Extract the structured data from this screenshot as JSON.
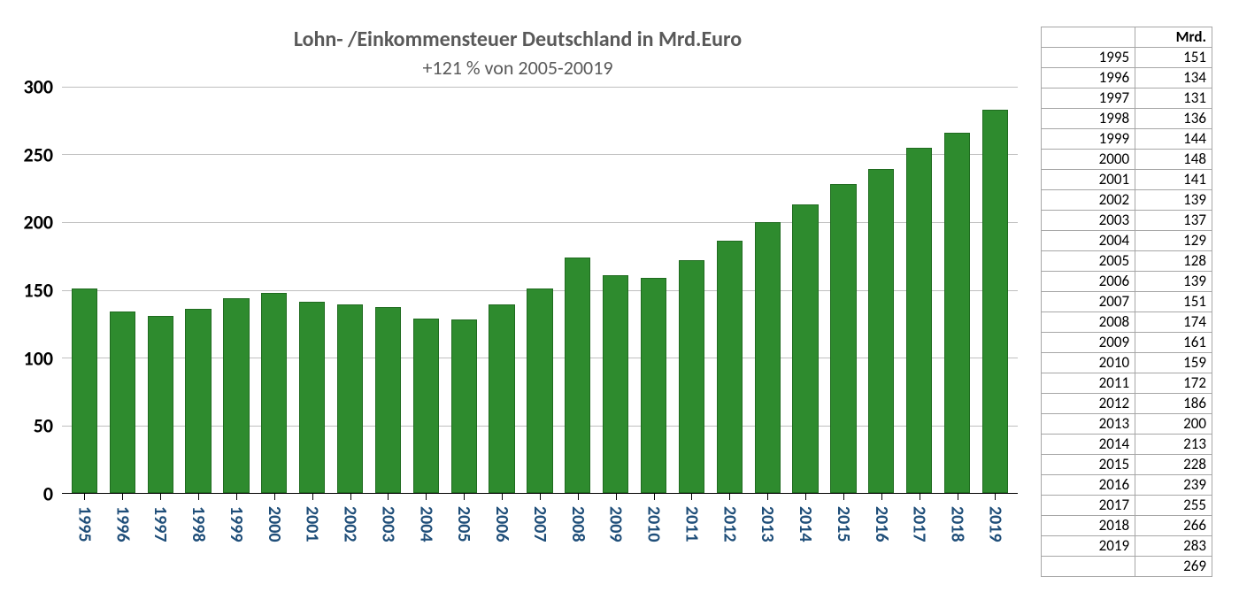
{
  "chart": {
    "type": "bar",
    "title": "Lohn- /Einkommensteuer Deutschland in Mrd.Euro",
    "subtitle": "+121 %  von 2005-20019",
    "title_fontsize": 24,
    "subtitle_fontsize": 22,
    "title_color": "#595959",
    "bar_color": "#2e8b2e",
    "bar_border_color": "#1f6b1f",
    "bar_width_ratio": 0.68,
    "grid_color": "#bfbfbf",
    "axis_color": "#000000",
    "background_color": "#ffffff",
    "xlabel_color": "#1f4e79",
    "xlabel_fontsize": 20,
    "ylabel_fontsize": 22,
    "ylabel_color": "#000000",
    "ylim": [
      0,
      300
    ],
    "ytick_step": 50,
    "yticks": [
      0,
      50,
      100,
      150,
      200,
      250,
      300
    ],
    "categories": [
      "1995",
      "1996",
      "1997",
      "1998",
      "1999",
      "2000",
      "2001",
      "2002",
      "2003",
      "2004",
      "2005",
      "2006",
      "2007",
      "2008",
      "2009",
      "2010",
      "2011",
      "2012",
      "2013",
      "2014",
      "2015",
      "2016",
      "2017",
      "2018",
      "2019"
    ],
    "values": [
      151,
      134,
      131,
      136,
      144,
      148,
      141,
      139,
      137,
      129,
      128,
      139,
      151,
      174,
      161,
      159,
      172,
      186,
      200,
      213,
      228,
      239,
      255,
      266,
      283
    ]
  },
  "table": {
    "header_blank": "",
    "header_value": "Mrd.",
    "rows": [
      {
        "year": "1995",
        "value": "151"
      },
      {
        "year": "1996",
        "value": "134"
      },
      {
        "year": "1997",
        "value": "131"
      },
      {
        "year": "1998",
        "value": "136"
      },
      {
        "year": "1999",
        "value": "144"
      },
      {
        "year": "2000",
        "value": "148"
      },
      {
        "year": "2001",
        "value": "141"
      },
      {
        "year": "2002",
        "value": "139"
      },
      {
        "year": "2003",
        "value": "137"
      },
      {
        "year": "2004",
        "value": "129"
      },
      {
        "year": "2005",
        "value": "128"
      },
      {
        "year": "2006",
        "value": "139"
      },
      {
        "year": "2007",
        "value": "151"
      },
      {
        "year": "2008",
        "value": "174"
      },
      {
        "year": "2009",
        "value": "161"
      },
      {
        "year": "2010",
        "value": "159"
      },
      {
        "year": "2011",
        "value": "172"
      },
      {
        "year": "2012",
        "value": "186"
      },
      {
        "year": "2013",
        "value": "200"
      },
      {
        "year": "2014",
        "value": "213"
      },
      {
        "year": "2015",
        "value": "228"
      },
      {
        "year": "2016",
        "value": "239"
      },
      {
        "year": "2017",
        "value": "255"
      },
      {
        "year": "2018",
        "value": "266"
      },
      {
        "year": "2019",
        "value": "283"
      },
      {
        "year": "",
        "value": "269"
      }
    ]
  }
}
